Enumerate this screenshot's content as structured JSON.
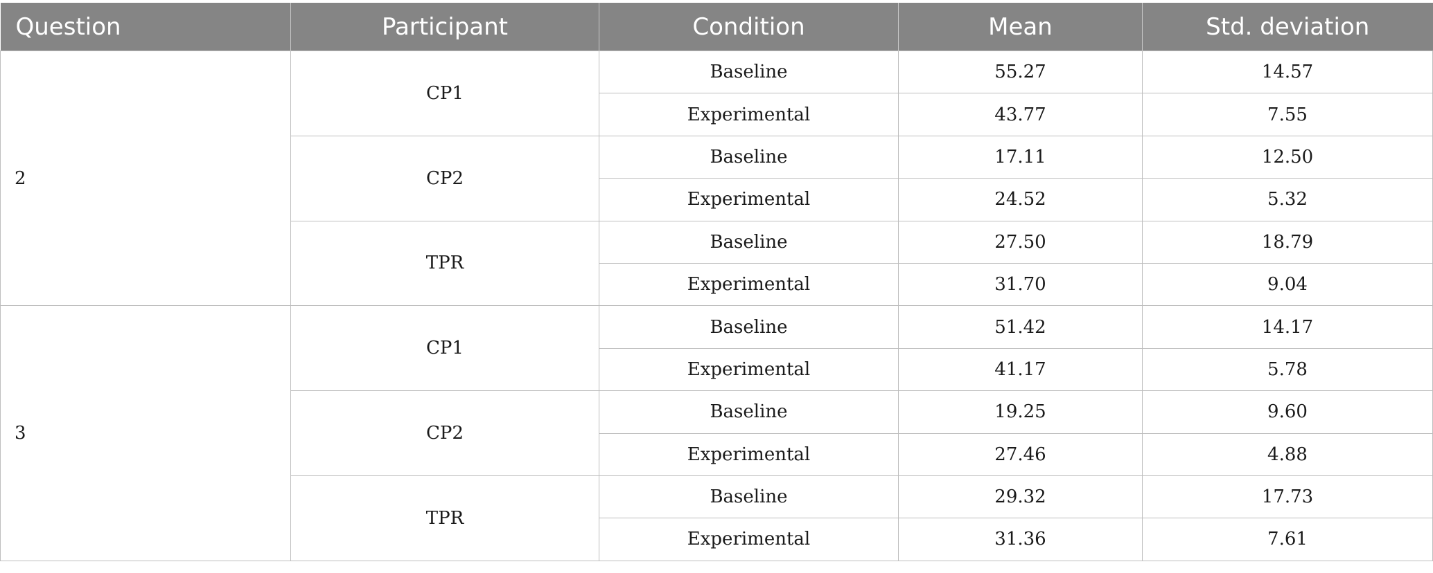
{
  "columns": [
    "Question",
    "Participant",
    "Condition",
    "Mean",
    "Std. deviation"
  ],
  "groups": [
    {
      "question": "2",
      "participants": [
        {
          "name": "CP1",
          "rows": [
            {
              "condition": "Baseline",
              "mean": "55.27",
              "sd": "14.57"
            },
            {
              "condition": "Experimental",
              "mean": "43.77",
              "sd": "7.55"
            }
          ]
        },
        {
          "name": "CP2",
          "rows": [
            {
              "condition": "Baseline",
              "mean": "17.11",
              "sd": "12.50"
            },
            {
              "condition": "Experimental",
              "mean": "24.52",
              "sd": "5.32"
            }
          ]
        },
        {
          "name": "TPR",
          "rows": [
            {
              "condition": "Baseline",
              "mean": "27.50",
              "sd": "18.79"
            },
            {
              "condition": "Experimental",
              "mean": "31.70",
              "sd": "9.04"
            }
          ]
        }
      ]
    },
    {
      "question": "3",
      "participants": [
        {
          "name": "CP1",
          "rows": [
            {
              "condition": "Baseline",
              "mean": "51.42",
              "sd": "14.17"
            },
            {
              "condition": "Experimental",
              "mean": "41.17",
              "sd": "5.78"
            }
          ]
        },
        {
          "name": "CP2",
          "rows": [
            {
              "condition": "Baseline",
              "mean": "19.25",
              "sd": "9.60"
            },
            {
              "condition": "Experimental",
              "mean": "27.46",
              "sd": "4.88"
            }
          ]
        },
        {
          "name": "TPR",
          "rows": [
            {
              "condition": "Baseline",
              "mean": "29.32",
              "sd": "17.73"
            },
            {
              "condition": "Experimental",
              "mean": "31.36",
              "sd": "7.61"
            }
          ]
        }
      ]
    }
  ]
}
